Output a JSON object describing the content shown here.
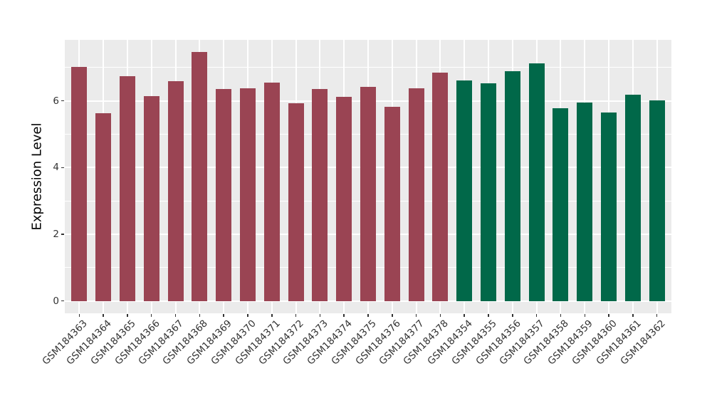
{
  "chart_data": {
    "type": "bar",
    "title": "",
    "xlabel": "",
    "ylabel": "Expression Level",
    "categories": [
      "GSM184363",
      "GSM184364",
      "GSM184365",
      "GSM184366",
      "GSM184367",
      "GSM184368",
      "GSM184369",
      "GSM184370",
      "GSM184371",
      "GSM184372",
      "GSM184373",
      "GSM184374",
      "GSM184375",
      "GSM184376",
      "GSM184377",
      "GSM184378",
      "GSM184354",
      "GSM184355",
      "GSM184356",
      "GSM184357",
      "GSM184358",
      "GSM184359",
      "GSM184360",
      "GSM184361",
      "GSM184362"
    ],
    "values": [
      7.02,
      5.64,
      6.75,
      6.15,
      6.59,
      7.46,
      6.35,
      6.37,
      6.54,
      5.94,
      6.36,
      6.12,
      6.41,
      5.82,
      6.37,
      6.84,
      6.62,
      6.53,
      6.9,
      7.12,
      5.77,
      5.96,
      5.66,
      6.18,
      6.01
    ],
    "group_index": [
      0,
      0,
      0,
      0,
      0,
      0,
      0,
      0,
      0,
      0,
      0,
      0,
      0,
      0,
      0,
      0,
      1,
      1,
      1,
      1,
      1,
      1,
      1,
      1,
      1
    ],
    "group_palette": [
      "#9A4453",
      "#016849"
    ],
    "ylim": [
      -0.37,
      7.83
    ],
    "yticks": [
      0,
      2,
      4,
      6
    ],
    "yticks_minor": [
      1,
      3,
      5,
      7
    ],
    "grid": true,
    "legend": "none",
    "panel_background": "#EBEBEB",
    "grid_color": "#FFFFFF",
    "axis_text_color": "#333333",
    "axis_title_color": "#000000",
    "tick_color": "#333333"
  }
}
